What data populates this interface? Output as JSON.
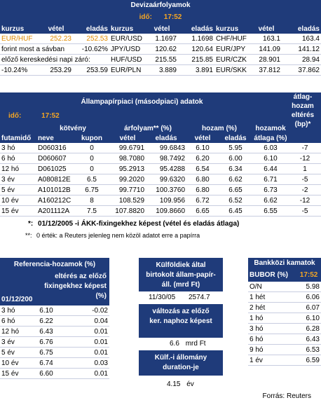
{
  "fx": {
    "title": "Devizaárfolyamok",
    "time_label": "idő:",
    "time": "17:52",
    "headers": [
      "kurzus",
      "vétel",
      "eladás",
      "kurzus",
      "vétel",
      "eladás",
      "kurzus",
      "vétel",
      "eladás"
    ],
    "rows": [
      [
        "EUR/HUF",
        "252.23",
        "252.53",
        "EUR/USD",
        "1.1697",
        "1.1698",
        "CHF/HUF",
        "163.1",
        "163.4"
      ],
      [
        "forint most a sávban",
        "",
        "-10.62%",
        "JPY/USD",
        "120.62",
        "120.64",
        "EUR/JPY",
        "141.09",
        "141.12"
      ],
      [
        "előző kereskedési napi záró:",
        "",
        "",
        "HUF/USD",
        "215.55",
        "215.85",
        "EUR/CZK",
        "28.901",
        "28.94"
      ],
      [
        "-10.24%",
        "253.29",
        "253.59",
        "EUR/PLN",
        "3.889",
        "3.891",
        "EUR/SKK",
        "37.812",
        "37.862"
      ]
    ]
  },
  "bonds": {
    "title": "Állampapírpiaci (másodpiaci) adatok",
    "time_label": "idő:",
    "time": "17:52",
    "h1": [
      "kötvény",
      "árfolyam** (%)",
      "hozam (%)",
      "hozamok"
    ],
    "h_atlag": "átlag-hozam eltérés (bp)*",
    "h2": [
      "futamidő",
      "neve",
      "kupon",
      "vétel",
      "eladás",
      "vétel",
      "eladás",
      "átlaga (%)"
    ],
    "rows": [
      [
        "3 hó",
        "D060316",
        "0",
        "99.6791",
        "99.6843",
        "6.10",
        "5.95",
        "6.03",
        "-7"
      ],
      [
        "6 hó",
        "D060607",
        "0",
        "98.7080",
        "98.7492",
        "6.20",
        "6.00",
        "6.10",
        "-12"
      ],
      [
        "12 hó",
        "D061025",
        "0",
        "95.2913",
        "95.4288",
        "6.54",
        "6.34",
        "6.44",
        "1"
      ],
      [
        "3 év",
        "A080812E",
        "6.5",
        "99.2020",
        "99.6320",
        "6.80",
        "6.62",
        "6.71",
        "-5"
      ],
      [
        "5 év",
        "A101012B",
        "6.75",
        "99.7710",
        "100.3760",
        "6.80",
        "6.65",
        "6.73",
        "-2"
      ],
      [
        "10 év",
        "A160212C",
        "8",
        "108.529",
        "109.956",
        "6.72",
        "6.52",
        "6.62",
        "-12"
      ],
      [
        "15 év",
        "A201112A",
        "7.5",
        "107.8820",
        "109.8660",
        "6.65",
        "6.45",
        "6.55",
        "-5"
      ]
    ],
    "note1_star": "*:",
    "note1": "01/12/2005 -i ÁKK-fixingekhez képest (vétel és eladás átlaga)",
    "note2_star": "**:",
    "note2": "0 érték: a Reuters jelenleg nem közöl adatot erre a papírra"
  },
  "ref": {
    "title": "Referencia-hozamok (%)",
    "col_header": "eltérés az előző fixingekhez képest (%)",
    "date": "01/12/200",
    "rows": [
      [
        "3 hó",
        "6.10",
        "-0.02"
      ],
      [
        "6 hó",
        "6.22",
        "0.04"
      ],
      [
        "12 hó",
        "6.43",
        "0.01"
      ],
      [
        "3 év",
        "6.76",
        "0.01"
      ],
      [
        "5 év",
        "6.75",
        "0.01"
      ],
      [
        "10 év",
        "6.74",
        "0.03"
      ],
      [
        "15 év",
        "6.60",
        "0.01"
      ]
    ]
  },
  "foreign": {
    "title": "Külföldiek által birtokolt állam-papír-áll. (mrd Ft)",
    "date": "11/30/05",
    "value": "2574.7",
    "change_title": "változás az előző ker. naphoz képest",
    "change_value": "6.6",
    "change_unit": "mrd Ft",
    "duration_title": "Külf.-i állomány duration-je",
    "duration_value": "4.15",
    "duration_unit": "év"
  },
  "bubor": {
    "title": "Bankközi kamatok",
    "sub": "BUBOR (%)",
    "time": "17:52",
    "rows": [
      [
        "O/N",
        "5.98"
      ],
      [
        "1 hét",
        "6.06"
      ],
      [
        "2 hét",
        "6.07"
      ],
      [
        "1 hó",
        "6.10"
      ],
      [
        "3 hó",
        "6.28"
      ],
      [
        "6 hó",
        "6.43"
      ],
      [
        "9 hó",
        "6.53"
      ],
      [
        "1 év",
        "6.59"
      ]
    ]
  },
  "source": "Forrás: Reuters"
}
